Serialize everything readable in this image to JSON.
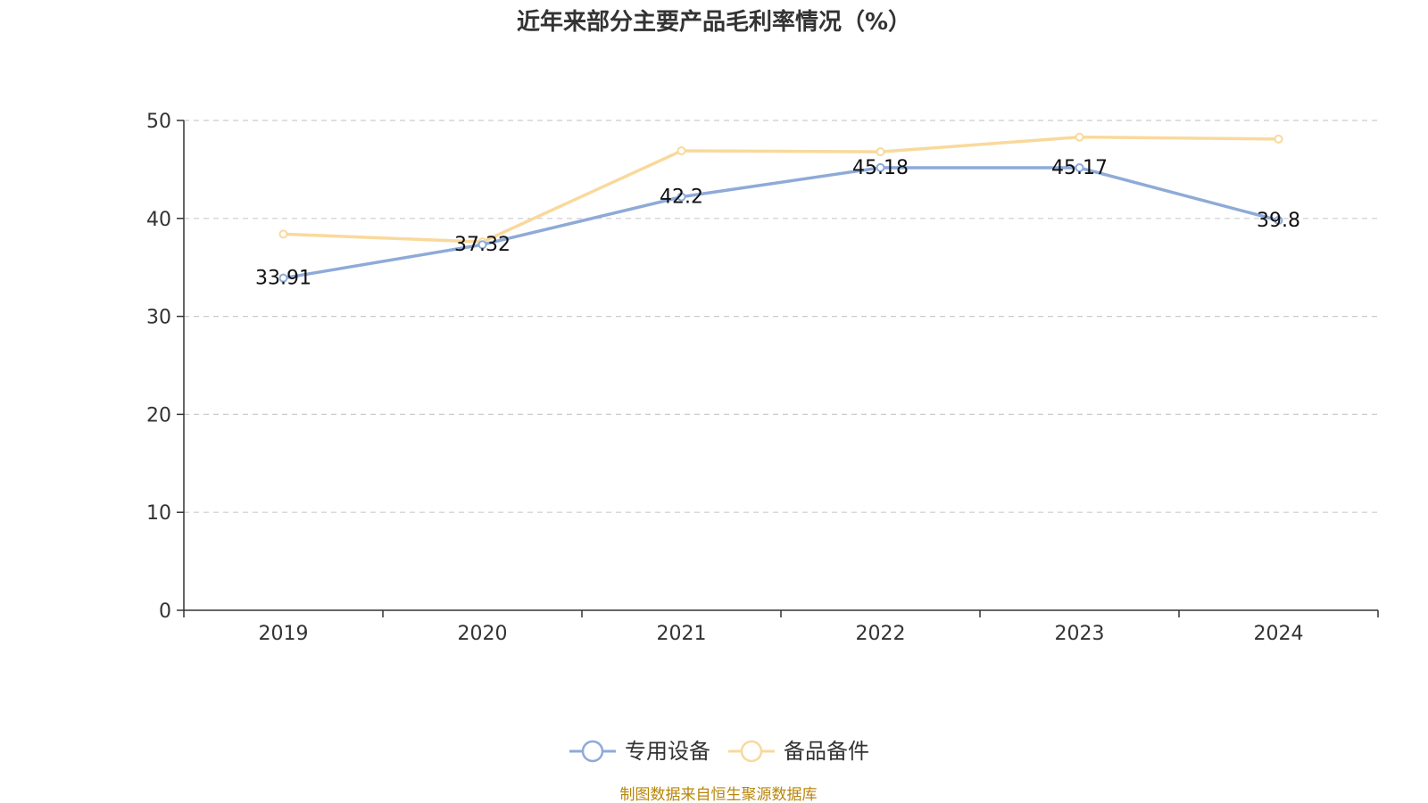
{
  "chart_data": {
    "type": "line",
    "title": "近年来部分主要产品毛利率情况（%）",
    "categories": [
      "2019",
      "2020",
      "2021",
      "2022",
      "2023",
      "2024"
    ],
    "ylim": [
      0,
      50
    ],
    "yticks": [
      0,
      10,
      20,
      30,
      40,
      50
    ],
    "grid": true,
    "legend_position": "bottom",
    "series": [
      {
        "name": "专用设备",
        "values": [
          33.91,
          37.32,
          42.2,
          45.18,
          45.17,
          39.8
        ],
        "labels": [
          "33.91",
          "37.32",
          "42.2",
          "45.18",
          "45.17",
          "39.8"
        ],
        "color": "#8eaad8"
      },
      {
        "name": "备品备件",
        "values": [
          38.4,
          37.6,
          46.9,
          46.8,
          48.3,
          48.1
        ],
        "color": "#f9d99b"
      }
    ],
    "source": "制图数据来自恒生聚源数据库"
  }
}
